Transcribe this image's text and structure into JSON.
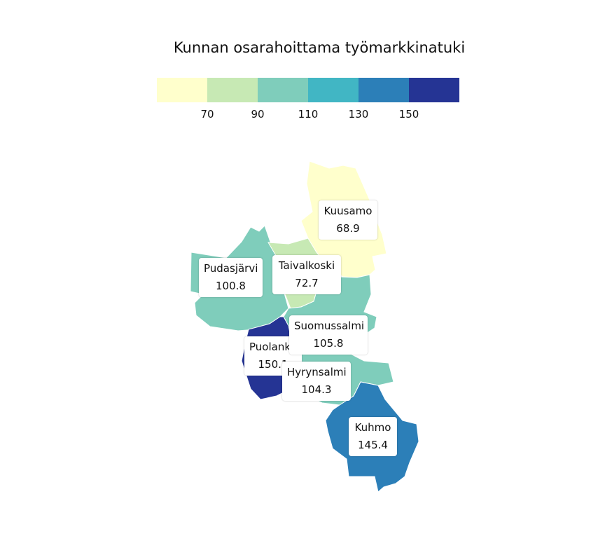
{
  "title": "Kunnan osarahoittama työmarkkinatuki",
  "legend": {
    "colors": [
      "#ffffcc",
      "#c7e9b4",
      "#7fcdbb",
      "#41b6c4",
      "#2c7fb8",
      "#253494"
    ],
    "ticks": [
      "70",
      "90",
      "110",
      "130",
      "150"
    ]
  },
  "regions": [
    {
      "name": "Kuusamo",
      "value": "68.9",
      "color": "#ffffcc"
    },
    {
      "name": "Taivalkoski",
      "value": "72.7",
      "color": "#c7e9b4"
    },
    {
      "name": "Pudasjärvi",
      "value": "100.8",
      "color": "#7fcdbb"
    },
    {
      "name": "Suomussalmi",
      "value": "105.8",
      "color": "#7fcdbb"
    },
    {
      "name": "Hyrynsalmi",
      "value": "104.3",
      "color": "#7fcdbb"
    },
    {
      "name": "Puolanka",
      "value": "150.1",
      "color": "#253494"
    },
    {
      "name": "Kuhmo",
      "value": "145.4",
      "color": "#2c7fb8"
    }
  ]
}
